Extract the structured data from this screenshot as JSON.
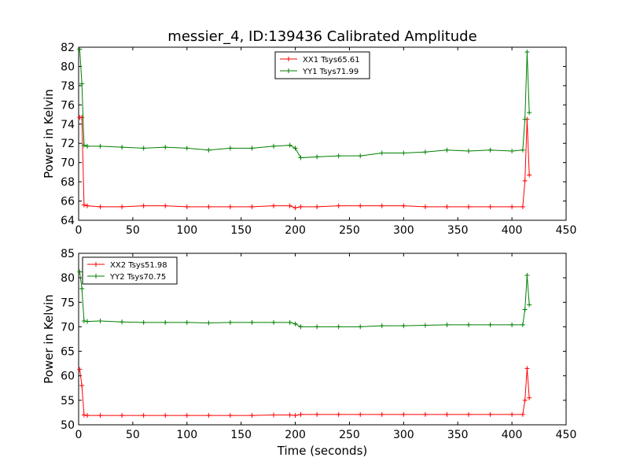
{
  "title": "messier_4, ID:139436 Calibrated Amplitude",
  "xlabel": "Time (seconds)",
  "colors": {
    "red": "#ff0000",
    "green": "#008000"
  },
  "chart_data": [
    {
      "type": "line",
      "ylabel": "Power in Kelvin",
      "xlim": [
        0,
        450
      ],
      "ylim": [
        64,
        82
      ],
      "xticks": [
        0,
        50,
        100,
        150,
        200,
        250,
        300,
        350,
        400,
        450
      ],
      "yticks": [
        64,
        66,
        68,
        70,
        72,
        74,
        76,
        78,
        80,
        82
      ],
      "legend_position": "top-center",
      "series": [
        {
          "name": "XX1 Tsys65.61",
          "color": "#ff0000",
          "x": [
            1,
            3,
            5,
            8,
            20,
            40,
            60,
            80,
            100,
            120,
            140,
            160,
            180,
            195,
            200,
            205,
            220,
            240,
            260,
            280,
            300,
            320,
            340,
            360,
            380,
            400,
            410,
            412,
            414,
            416
          ],
          "y": [
            74.7,
            74.7,
            65.6,
            65.5,
            65.4,
            65.4,
            65.5,
            65.5,
            65.4,
            65.4,
            65.4,
            65.4,
            65.5,
            65.5,
            65.3,
            65.4,
            65.4,
            65.5,
            65.5,
            65.5,
            65.5,
            65.4,
            65.4,
            65.4,
            65.4,
            65.4,
            65.4,
            68.1,
            74.5,
            68.7
          ]
        },
        {
          "name": "YY1 Tsys71.99",
          "color": "#008000",
          "x": [
            1,
            3,
            5,
            8,
            20,
            40,
            60,
            80,
            100,
            120,
            140,
            160,
            180,
            195,
            200,
            205,
            220,
            240,
            260,
            280,
            300,
            320,
            340,
            360,
            380,
            400,
            410,
            412,
            414,
            416
          ],
          "y": [
            81.8,
            78.2,
            71.8,
            71.7,
            71.7,
            71.6,
            71.5,
            71.6,
            71.5,
            71.3,
            71.5,
            71.5,
            71.7,
            71.8,
            71.5,
            70.5,
            70.6,
            70.7,
            70.7,
            71.0,
            71.0,
            71.1,
            71.3,
            71.2,
            71.3,
            71.2,
            71.3,
            74.5,
            81.5,
            75.2
          ]
        }
      ]
    },
    {
      "type": "line",
      "ylabel": "Power in Kelvin",
      "xlabel": "Time (seconds)",
      "xlim": [
        0,
        450
      ],
      "ylim": [
        50,
        85
      ],
      "xticks": [
        0,
        50,
        100,
        150,
        200,
        250,
        300,
        350,
        400,
        450
      ],
      "yticks": [
        50,
        55,
        60,
        65,
        70,
        75,
        80,
        85
      ],
      "legend_position": "top-left",
      "series": [
        {
          "name": "XX2 Tsys51.98",
          "color": "#ff0000",
          "x": [
            1,
            3,
            5,
            8,
            20,
            40,
            60,
            80,
            100,
            120,
            140,
            160,
            180,
            195,
            200,
            205,
            220,
            240,
            260,
            280,
            300,
            320,
            340,
            360,
            380,
            400,
            410,
            412,
            414,
            416
          ],
          "y": [
            61.3,
            58.0,
            52.0,
            51.9,
            51.9,
            51.9,
            51.9,
            51.9,
            51.9,
            51.9,
            51.9,
            51.9,
            52.0,
            52.0,
            51.9,
            52.1,
            52.1,
            52.1,
            52.1,
            52.1,
            52.1,
            52.1,
            52.1,
            52.1,
            52.1,
            52.1,
            52.1,
            55.0,
            61.5,
            55.5
          ]
        },
        {
          "name": "YY2 Tsys70.75",
          "color": "#008000",
          "x": [
            1,
            3,
            5,
            8,
            20,
            40,
            60,
            80,
            100,
            120,
            140,
            160,
            180,
            195,
            200,
            205,
            220,
            240,
            260,
            280,
            300,
            320,
            340,
            360,
            380,
            400,
            410,
            412,
            414,
            416
          ],
          "y": [
            81.2,
            77.8,
            71.2,
            71.1,
            71.2,
            71.0,
            70.9,
            70.9,
            70.9,
            70.8,
            70.9,
            70.9,
            70.9,
            70.9,
            70.6,
            70.0,
            70.0,
            70.0,
            70.0,
            70.2,
            70.2,
            70.3,
            70.4,
            70.4,
            70.4,
            70.4,
            70.4,
            73.5,
            80.5,
            74.5
          ]
        }
      ]
    }
  ]
}
